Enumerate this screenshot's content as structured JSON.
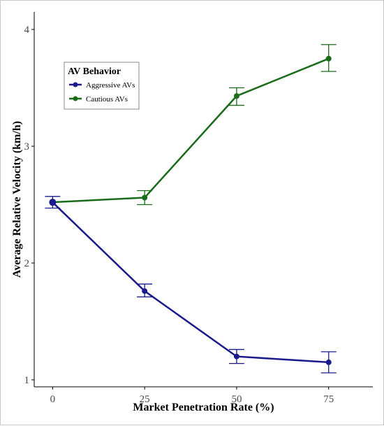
{
  "chart_data": {
    "type": "line",
    "title": "",
    "xlabel": "Market Penetration Rate (%)",
    "ylabel": "Average Relative Velocity (km/h)",
    "x": [
      0,
      25,
      50,
      75
    ],
    "x_tick_labels": [
      "0",
      "25",
      "50",
      "75"
    ],
    "y_ticks": [
      1,
      2,
      3,
      4
    ],
    "y_tick_labels": [
      "1",
      "2",
      "3",
      "4"
    ],
    "xlim": [
      -5,
      87
    ],
    "ylim": [
      0.94,
      4.15
    ],
    "grid": false,
    "legend": {
      "title": "AV Behavior",
      "placement": "top-left"
    },
    "series": [
      {
        "name": "Aggressive AVs",
        "color": "#1a1a8c",
        "values": [
          2.52,
          1.76,
          1.2,
          1.15
        ],
        "error_low": [
          2.47,
          1.71,
          1.14,
          1.06
        ],
        "error_high": [
          2.57,
          1.82,
          1.26,
          1.24
        ]
      },
      {
        "name": "Cautious AVs",
        "color": "#1a6b1a",
        "values": [
          2.52,
          2.56,
          3.43,
          3.75
        ],
        "error_low": [
          2.52,
          2.5,
          3.35,
          3.64
        ],
        "error_high": [
          2.52,
          2.62,
          3.5,
          3.87
        ]
      }
    ]
  }
}
